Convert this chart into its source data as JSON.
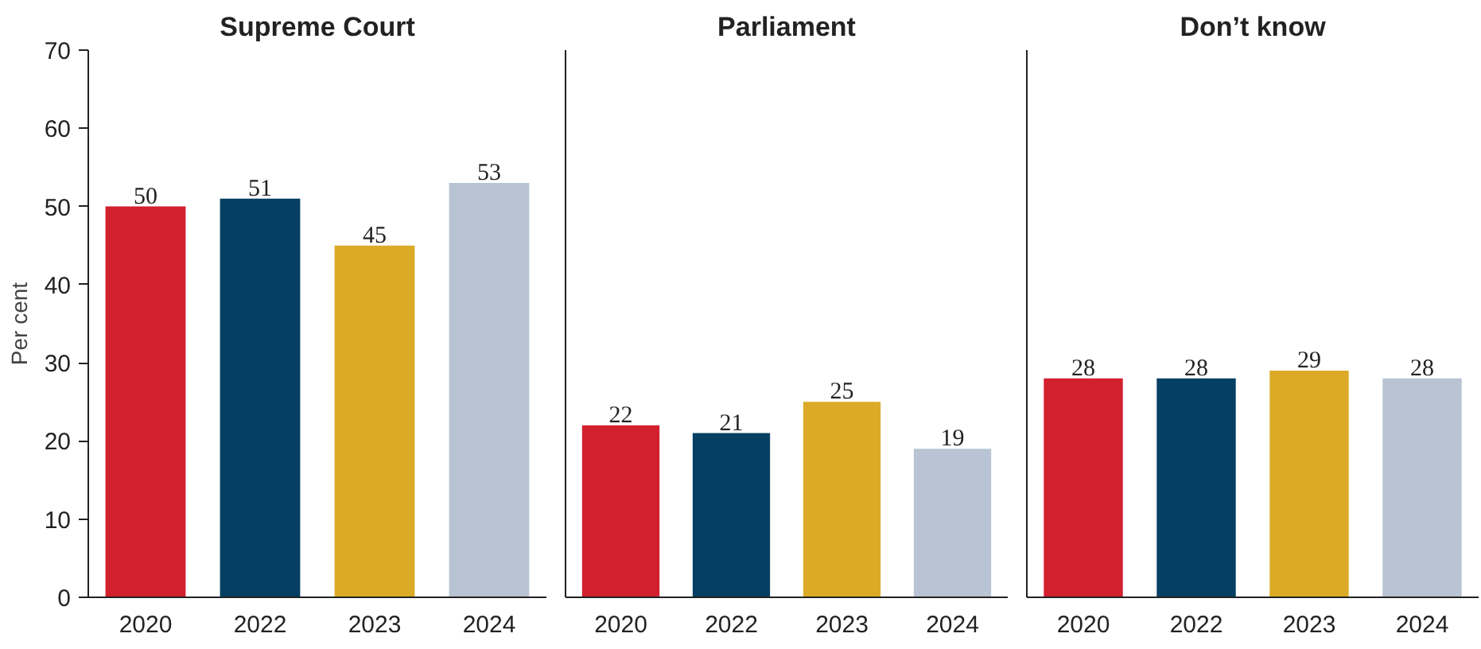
{
  "chart_data": [
    {
      "type": "bar",
      "title": "Supreme Court",
      "ylabel": "Per cent",
      "categories": [
        "2020",
        "2022",
        "2023",
        "2024"
      ],
      "values": [
        50,
        51,
        45,
        53
      ],
      "colors": [
        "#d2202e",
        "#054063",
        "#dbab27",
        "#b8c4d4"
      ],
      "ylim": [
        0,
        70
      ],
      "yticks": [
        0,
        10,
        20,
        30,
        40,
        50,
        60,
        70
      ],
      "data_labels": true
    },
    {
      "type": "bar",
      "title": "Parliament",
      "categories": [
        "2020",
        "2022",
        "2023",
        "2024"
      ],
      "values": [
        22,
        21,
        25,
        19
      ],
      "colors": [
        "#d2202e",
        "#054063",
        "#dbab27",
        "#b8c4d4"
      ],
      "ylim": [
        0,
        70
      ],
      "tick_labels": "x",
      "data_labels": true
    },
    {
      "type": "bar",
      "title": "Don’t know",
      "categories": [
        "2020",
        "2022",
        "2023",
        "2024"
      ],
      "values": [
        28,
        28,
        29,
        28
      ],
      "colors": [
        "#d2202e",
        "#054063",
        "#dbab27",
        "#b8c4d4"
      ],
      "ylim": [
        0,
        70
      ],
      "tick_labels": "x",
      "data_labels": true
    }
  ]
}
